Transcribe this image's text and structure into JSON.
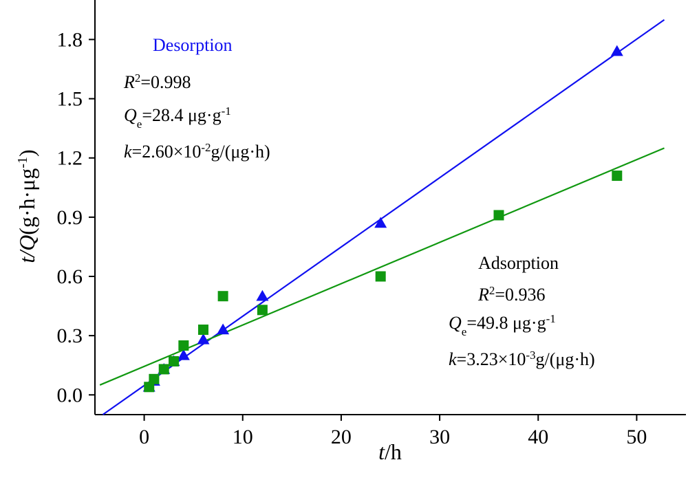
{
  "chart_data": {
    "type": "scatter",
    "xlabel": {
      "var": "t",
      "unit": "/h"
    },
    "ylabel": {
      "var": "t/Q",
      "unit": "(g·h·μg",
      "sup": "-1",
      "close": ")"
    },
    "xlim": [
      -5,
      55
    ],
    "ylim": [
      -0.1,
      2.0
    ],
    "xticks": [
      0,
      10,
      20,
      30,
      40,
      50
    ],
    "yticks": [
      0.0,
      0.3,
      0.6,
      0.9,
      1.2,
      1.5,
      1.8
    ],
    "ytick_labels": [
      "0.0",
      "0.3",
      "0.6",
      "0.9",
      "1.2",
      "1.5",
      "1.8"
    ],
    "series": [
      {
        "name": "Desorption",
        "marker": "triangle",
        "color": "#1010f0",
        "x": [
          0.5,
          1,
          2,
          3,
          4,
          6,
          8,
          12,
          24,
          48
        ],
        "y": [
          0.04,
          0.07,
          0.13,
          0.17,
          0.2,
          0.28,
          0.33,
          0.5,
          0.87,
          1.74
        ],
        "fit": {
          "x": [
            -4.2,
            52.8
          ],
          "y": [
            -0.1,
            1.9
          ]
        },
        "annotation": {
          "title": "Desorption",
          "r2": {
            "var": "R",
            "sup": "2",
            "val": "=0.998"
          },
          "qe": {
            "var": "Q",
            "sub": "e",
            "val": "=28.4 μg·g",
            "sup": "-1"
          },
          "k": {
            "var": "k",
            "val": "=2.60×10",
            "sup": "-2",
            "tail": "g/(μg·h)"
          }
        }
      },
      {
        "name": "Adsorption",
        "marker": "square",
        "color": "#109810",
        "x": [
          0.5,
          1,
          2,
          3,
          4,
          6,
          8,
          12,
          24,
          36,
          48
        ],
        "y": [
          0.04,
          0.08,
          0.13,
          0.17,
          0.25,
          0.33,
          0.5,
          0.43,
          0.6,
          0.91,
          1.11
        ],
        "fit": {
          "x": [
            -4.5,
            52.8
          ],
          "y": [
            0.05,
            1.25
          ]
        },
        "annotation": {
          "title": "Adsorption",
          "r2": {
            "var": "R",
            "sup": "2",
            "val": "=0.936"
          },
          "qe": {
            "var": "Q",
            "sub": "e",
            "val": "=49.8 μg·g",
            "sup": "-1"
          },
          "k": {
            "var": "k",
            "val": "=3.23×10",
            "sup": "-3",
            "tail": "g/(μg·h)"
          }
        }
      }
    ]
  }
}
